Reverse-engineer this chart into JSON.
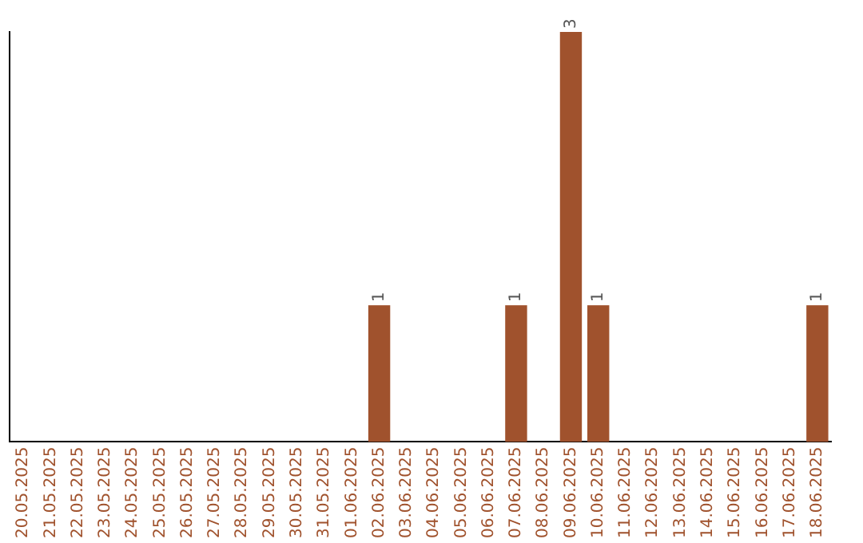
{
  "chart_data": {
    "type": "bar",
    "categories": [
      "20.05.2025",
      "21.05.2025",
      "22.05.2025",
      "23.05.2025",
      "24.05.2025",
      "25.05.2025",
      "26.05.2025",
      "27.05.2025",
      "28.05.2025",
      "29.05.2025",
      "30.05.2025",
      "31.05.2025",
      "01.06.2025",
      "02.06.2025",
      "03.06.2025",
      "04.06.2025",
      "05.06.2025",
      "06.06.2025",
      "07.06.2025",
      "08.06.2025",
      "09.06.2025",
      "10.06.2025",
      "11.06.2025",
      "12.06.2025",
      "13.06.2025",
      "14.06.2025",
      "15.06.2025",
      "16.06.2025",
      "17.06.2025",
      "18.06.2025"
    ],
    "values": [
      null,
      null,
      null,
      null,
      null,
      null,
      null,
      null,
      null,
      null,
      null,
      null,
      null,
      1,
      null,
      null,
      null,
      null,
      1,
      null,
      3,
      1,
      null,
      null,
      null,
      null,
      null,
      null,
      null,
      1
    ],
    "data_labels": true,
    "color": "#a0522d",
    "grid": false,
    "legend": false,
    "tick_labels": "x"
  }
}
